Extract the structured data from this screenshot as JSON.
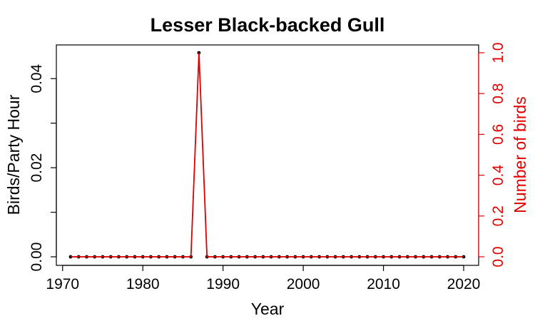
{
  "chart_data": {
    "type": "line",
    "title": "Lesser Black-backed Gull",
    "xlabel": "Year",
    "ylabel": "Birds/Party Hour",
    "y2label": "Number of birds",
    "xlim": [
      1971,
      2020
    ],
    "ylim": [
      0,
      0.0458
    ],
    "y2lim": [
      0,
      1.0
    ],
    "xticks": [
      1970,
      1980,
      1990,
      2000,
      2010,
      2020
    ],
    "xtick_labels": [
      "1970",
      "1980",
      "1990",
      "2000",
      "2010",
      "2020"
    ],
    "yticks": [
      0.0,
      0.01,
      0.02,
      0.03,
      0.04
    ],
    "ytick_labels": [
      "0.00",
      "",
      "0.02",
      "",
      "0.04"
    ],
    "y2ticks": [
      0.0,
      0.2,
      0.4,
      0.6,
      0.8,
      1.0
    ],
    "y2tick_labels": [
      "0.0",
      "0.2",
      "0.4",
      "0.6",
      "0.8",
      "1.0"
    ],
    "grid": false,
    "x": [
      1971,
      1972,
      1973,
      1974,
      1975,
      1976,
      1977,
      1978,
      1979,
      1980,
      1981,
      1982,
      1983,
      1984,
      1985,
      1986,
      1987,
      1988,
      1989,
      1990,
      1991,
      1992,
      1993,
      1994,
      1995,
      1996,
      1997,
      1998,
      1999,
      2000,
      2001,
      2002,
      2003,
      2004,
      2005,
      2006,
      2007,
      2008,
      2009,
      2010,
      2011,
      2012,
      2013,
      2014,
      2015,
      2016,
      2017,
      2018,
      2019,
      2020
    ],
    "series": [
      {
        "axis": "left",
        "color": "#000000",
        "marker": "point",
        "values": [
          0,
          0,
          0,
          0,
          0,
          0,
          0,
          0,
          0,
          0,
          0,
          0,
          0,
          0,
          0,
          0,
          0.0458,
          0,
          0,
          0,
          0,
          0,
          0,
          0,
          0,
          0,
          0,
          0,
          0,
          0,
          0,
          0,
          0,
          0,
          0,
          0,
          0,
          0,
          0,
          0,
          0,
          0,
          0,
          0,
          0,
          0,
          0,
          0,
          0,
          0
        ]
      },
      {
        "axis": "right",
        "color": "#e00000",
        "marker": "none",
        "values": [
          0,
          0,
          0,
          0,
          0,
          0,
          0,
          0,
          0,
          0,
          0,
          0,
          0,
          0,
          0,
          0,
          1,
          0,
          0,
          0,
          0,
          0,
          0,
          0,
          0,
          0,
          0,
          0,
          0,
          0,
          0,
          0,
          0,
          0,
          0,
          0,
          0,
          0,
          0,
          0,
          0,
          0,
          0,
          0,
          0,
          0,
          0,
          0,
          0,
          0
        ]
      }
    ]
  }
}
